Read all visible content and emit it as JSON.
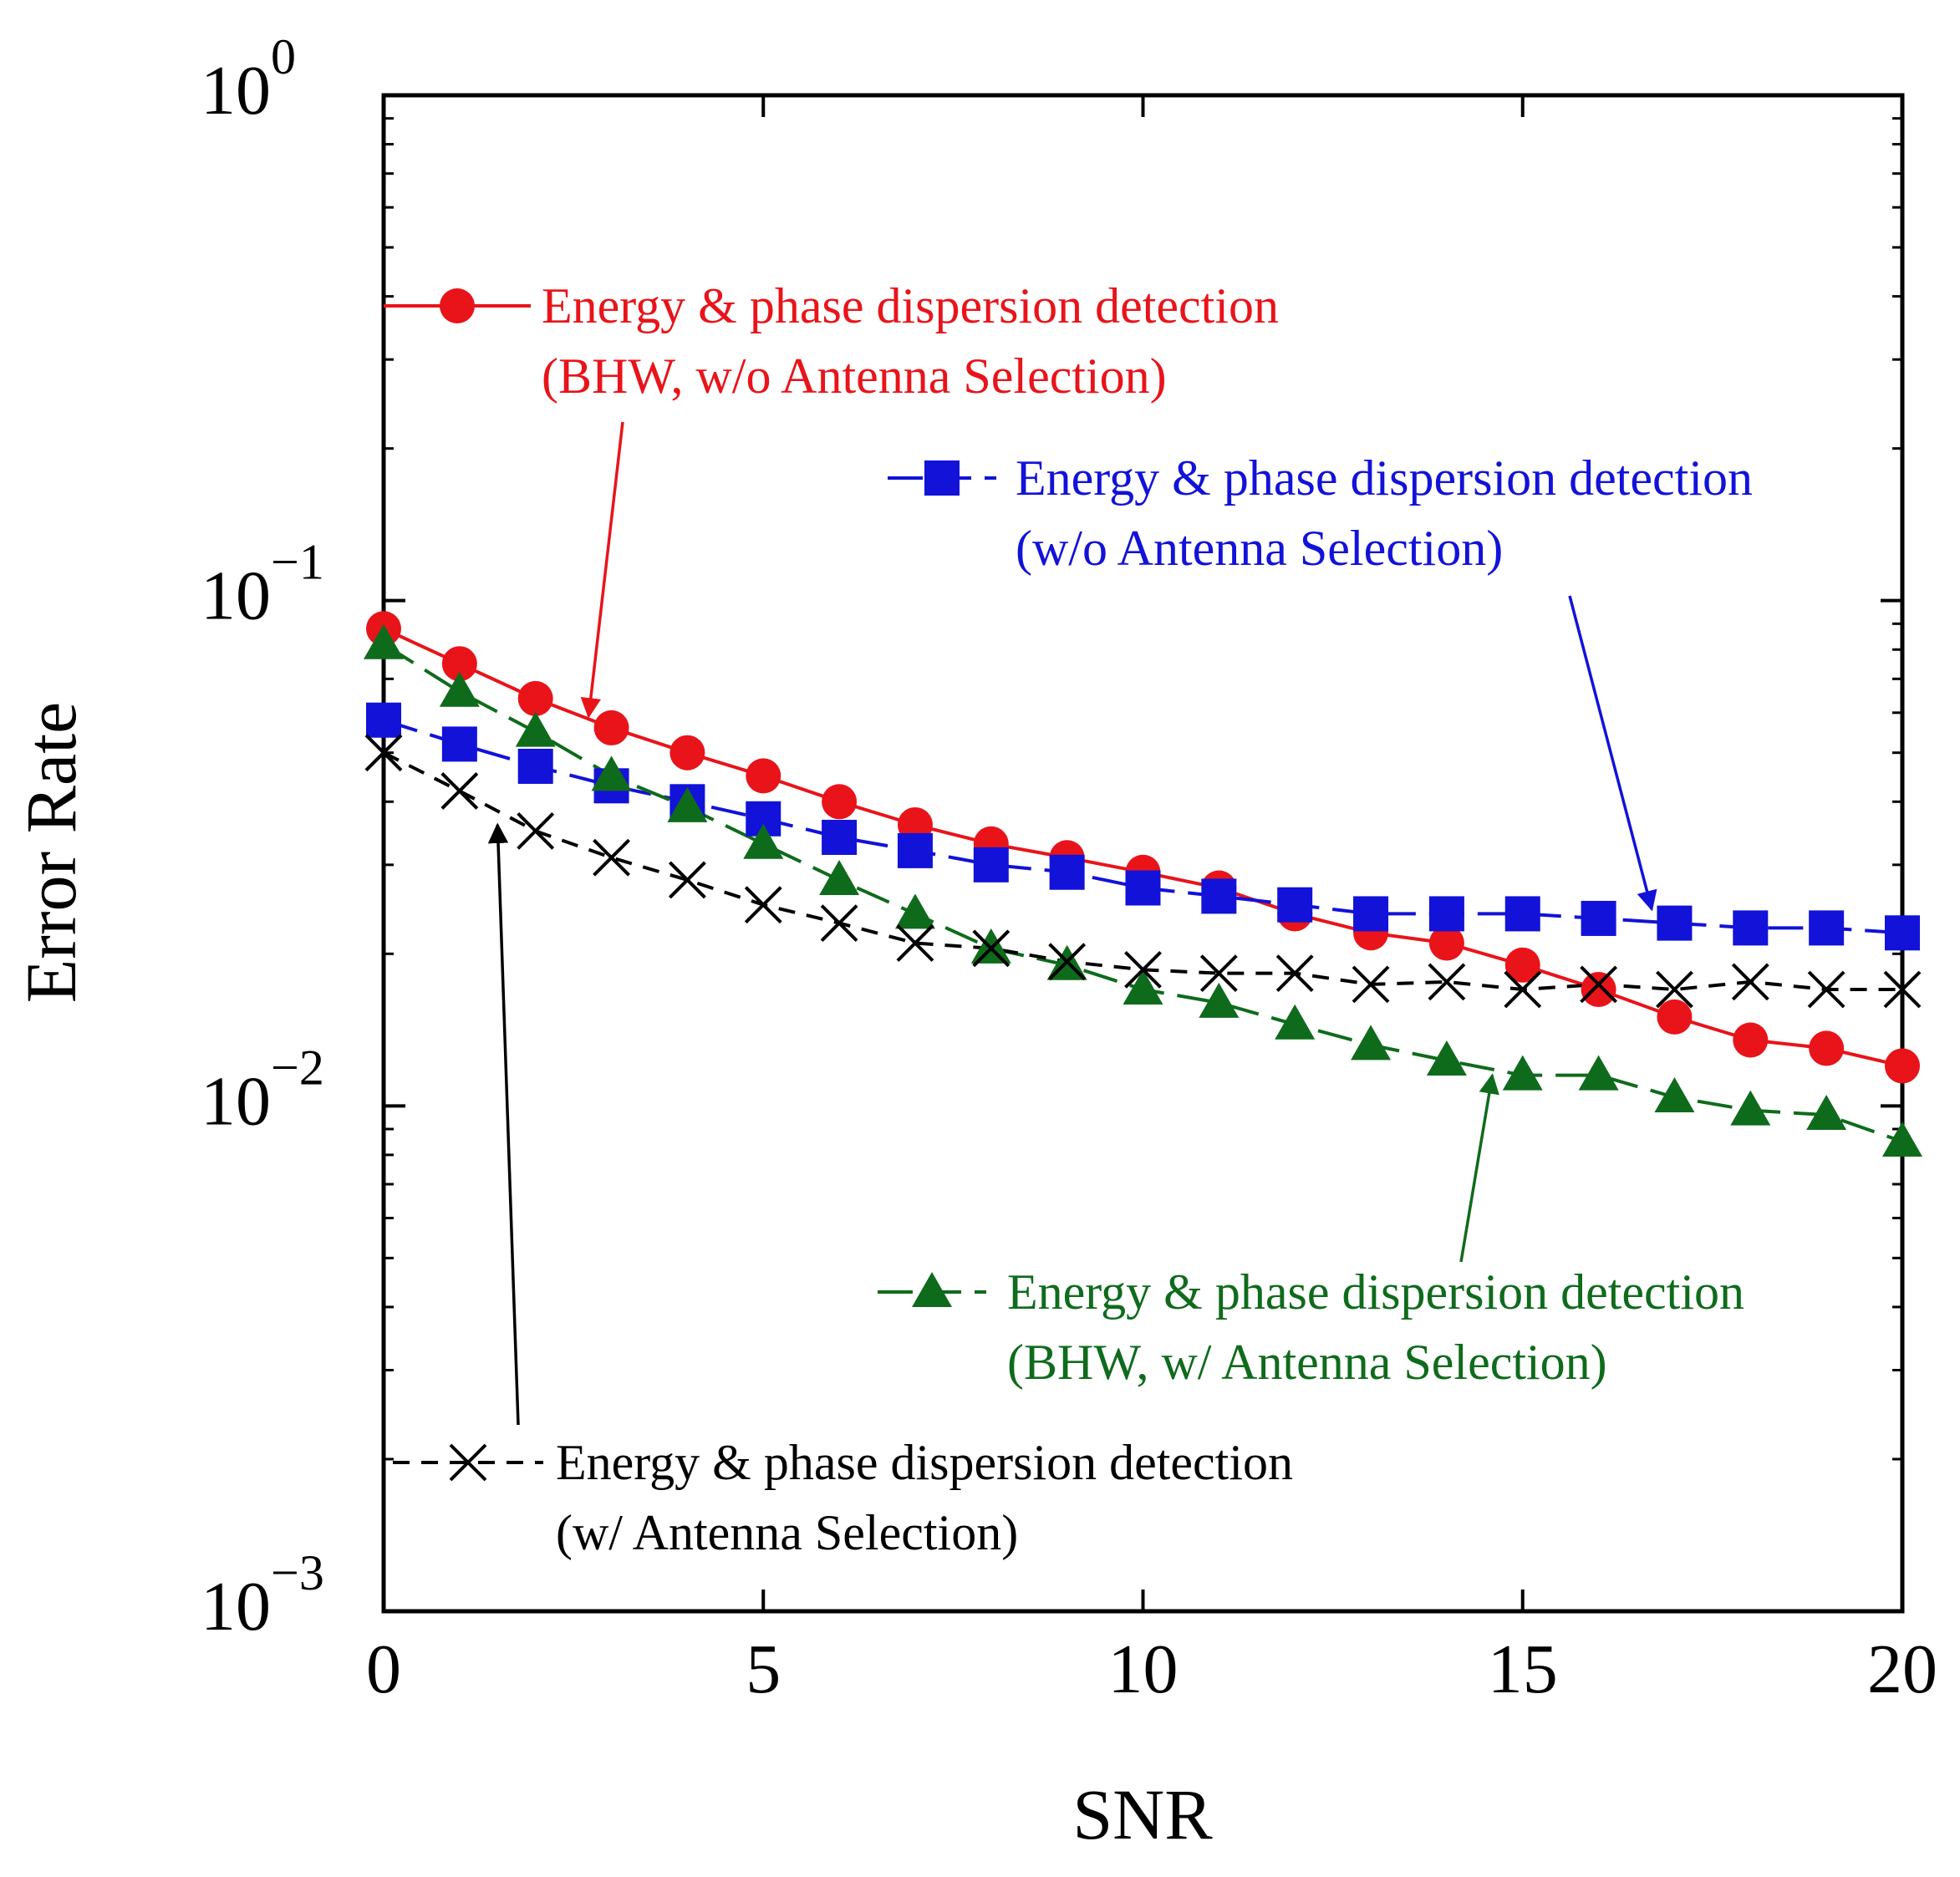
{
  "chart_data": {
    "type": "line",
    "title": "",
    "xlabel": "SNR",
    "ylabel": "Error Rate",
    "xlim": [
      0,
      20
    ],
    "ylim": [
      0.001,
      1
    ],
    "yscale": "log",
    "x_ticks": [
      0,
      5,
      10,
      15,
      20
    ],
    "x_tick_labels": [
      "0",
      "5",
      "10",
      "15",
      "20"
    ],
    "y_ticks": [
      {
        "value": 1,
        "base": "10",
        "exp": "0"
      },
      {
        "value": 0.1,
        "base": "10",
        "exp": "−1"
      },
      {
        "value": 0.01,
        "base": "10",
        "exp": "−2"
      },
      {
        "value": 0.001,
        "base": "10",
        "exp": "−3"
      }
    ],
    "grid": false,
    "x": [
      0,
      1,
      2,
      3,
      4,
      5,
      6,
      7,
      8,
      9,
      10,
      11,
      12,
      13,
      14,
      15,
      16,
      17,
      18,
      19,
      20
    ],
    "series": [
      {
        "id": "bhw-wo",
        "name_line1": "Energy & phase dispersion detection",
        "name_line2": "(BHW, w/o Antenna Selection)",
        "color": "#e8141a",
        "marker": "circle",
        "dash": "solid",
        "values": [
          0.088,
          0.075,
          0.064,
          0.056,
          0.05,
          0.045,
          0.04,
          0.036,
          0.033,
          0.031,
          0.029,
          0.027,
          0.024,
          0.022,
          0.021,
          0.019,
          0.017,
          0.015,
          0.0135,
          0.013,
          0.012
        ]
      },
      {
        "id": "wo",
        "name_line1": "Energy & phase dispersion detection",
        "name_line2": "(w/o Antenna Selection)",
        "color": "#1212d8",
        "marker": "square",
        "dash": "longdash",
        "values": [
          0.058,
          0.052,
          0.047,
          0.043,
          0.04,
          0.037,
          0.034,
          0.032,
          0.03,
          0.029,
          0.027,
          0.026,
          0.025,
          0.024,
          0.024,
          0.024,
          0.0235,
          0.023,
          0.0225,
          0.0225,
          0.022
        ]
      },
      {
        "id": "bhw-w",
        "name_line1": "Energy & phase dispersion detection",
        "name_line2": "(BHW, w/ Antenna Selection)",
        "color": "#0f6b1c",
        "marker": "triangle",
        "dash": "longdash",
        "values": [
          0.082,
          0.066,
          0.055,
          0.045,
          0.039,
          0.033,
          0.028,
          0.024,
          0.0205,
          0.019,
          0.017,
          0.016,
          0.0145,
          0.0132,
          0.0123,
          0.0115,
          0.0115,
          0.0104,
          0.0098,
          0.0096,
          0.0085
        ]
      },
      {
        "id": "w",
        "name_line1": "Energy & phase dispersion detection",
        "name_line2": "(w/ Antenna Selection)",
        "color": "#000000",
        "marker": "x",
        "dash": "shortdash",
        "values": [
          0.05,
          0.042,
          0.035,
          0.031,
          0.028,
          0.025,
          0.023,
          0.021,
          0.0205,
          0.0193,
          0.0186,
          0.0183,
          0.0183,
          0.0174,
          0.0176,
          0.017,
          0.0174,
          0.017,
          0.0176,
          0.017,
          0.017
        ]
      }
    ],
    "annotations": [
      {
        "series": "bhw-wo",
        "arrow_target_x": 2.7,
        "arrow_target_y": 0.059
      },
      {
        "series": "wo",
        "arrow_target_x": 16.7,
        "arrow_target_y": 0.0245
      },
      {
        "series": "bhw-w",
        "arrow_target_x": 14.6,
        "arrow_target_y": 0.0115
      },
      {
        "series": "w",
        "arrow_target_x": 1.5,
        "arrow_target_y": 0.036
      }
    ]
  }
}
